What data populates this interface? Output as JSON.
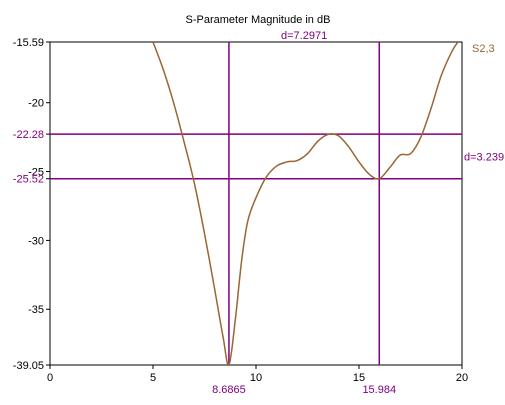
{
  "chart_data": {
    "type": "line",
    "title": "S-Parameter Magnitude in dB",
    "xlabel": "",
    "ylabel": "",
    "xlim": [
      0,
      20
    ],
    "ylim": [
      -39.05,
      -15.59
    ],
    "x_ticks": [
      "0",
      "5",
      "10",
      "15",
      "20"
    ],
    "y_ticks": [
      "-15.59",
      "-20",
      "-22.28",
      "-25",
      "-25.52",
      "-30",
      "-35",
      "-39.05"
    ],
    "grid": true,
    "series": [
      {
        "name": "S2,3",
        "color": "#996633",
        "points": [
          [
            5.0,
            -15.59
          ],
          [
            5.5,
            -17.6
          ],
          [
            6.0,
            -20.0
          ],
          [
            6.5,
            -22.8
          ],
          [
            7.0,
            -25.8
          ],
          [
            7.5,
            -29.5
          ],
          [
            8.0,
            -33.6
          ],
          [
            8.4,
            -37.0
          ],
          [
            8.6865,
            -39.05
          ],
          [
            9.0,
            -35.7
          ],
          [
            9.3,
            -31.5
          ],
          [
            9.6,
            -28.6
          ],
          [
            10.0,
            -26.9
          ],
          [
            10.5,
            -25.4
          ],
          [
            11.0,
            -24.6
          ],
          [
            11.5,
            -24.3
          ],
          [
            12.0,
            -24.2
          ],
          [
            12.5,
            -23.7
          ],
          [
            13.0,
            -22.8
          ],
          [
            13.5,
            -22.3
          ],
          [
            14.0,
            -22.4
          ],
          [
            14.5,
            -23.2
          ],
          [
            15.0,
            -24.3
          ],
          [
            15.5,
            -25.2
          ],
          [
            15.984,
            -25.52
          ],
          [
            16.5,
            -24.7
          ],
          [
            17.0,
            -23.8
          ],
          [
            17.5,
            -23.7
          ],
          [
            18.0,
            -22.5
          ],
          [
            18.5,
            -20.4
          ],
          [
            19.0,
            -18.0
          ],
          [
            19.5,
            -16.3
          ],
          [
            19.8,
            -15.59
          ]
        ]
      }
    ],
    "markers": {
      "color": "#800080",
      "vertical": [
        {
          "x": 8.6865,
          "label": "8.6865"
        },
        {
          "x": 15.984,
          "label": "15.984"
        }
      ],
      "horizontal": [
        {
          "y": -22.28,
          "label": "-22.28"
        },
        {
          "y": -25.52,
          "label": "-25.52"
        }
      ],
      "delta_x_label": "d=7.2971",
      "delta_y_label": "d=3.239"
    }
  }
}
